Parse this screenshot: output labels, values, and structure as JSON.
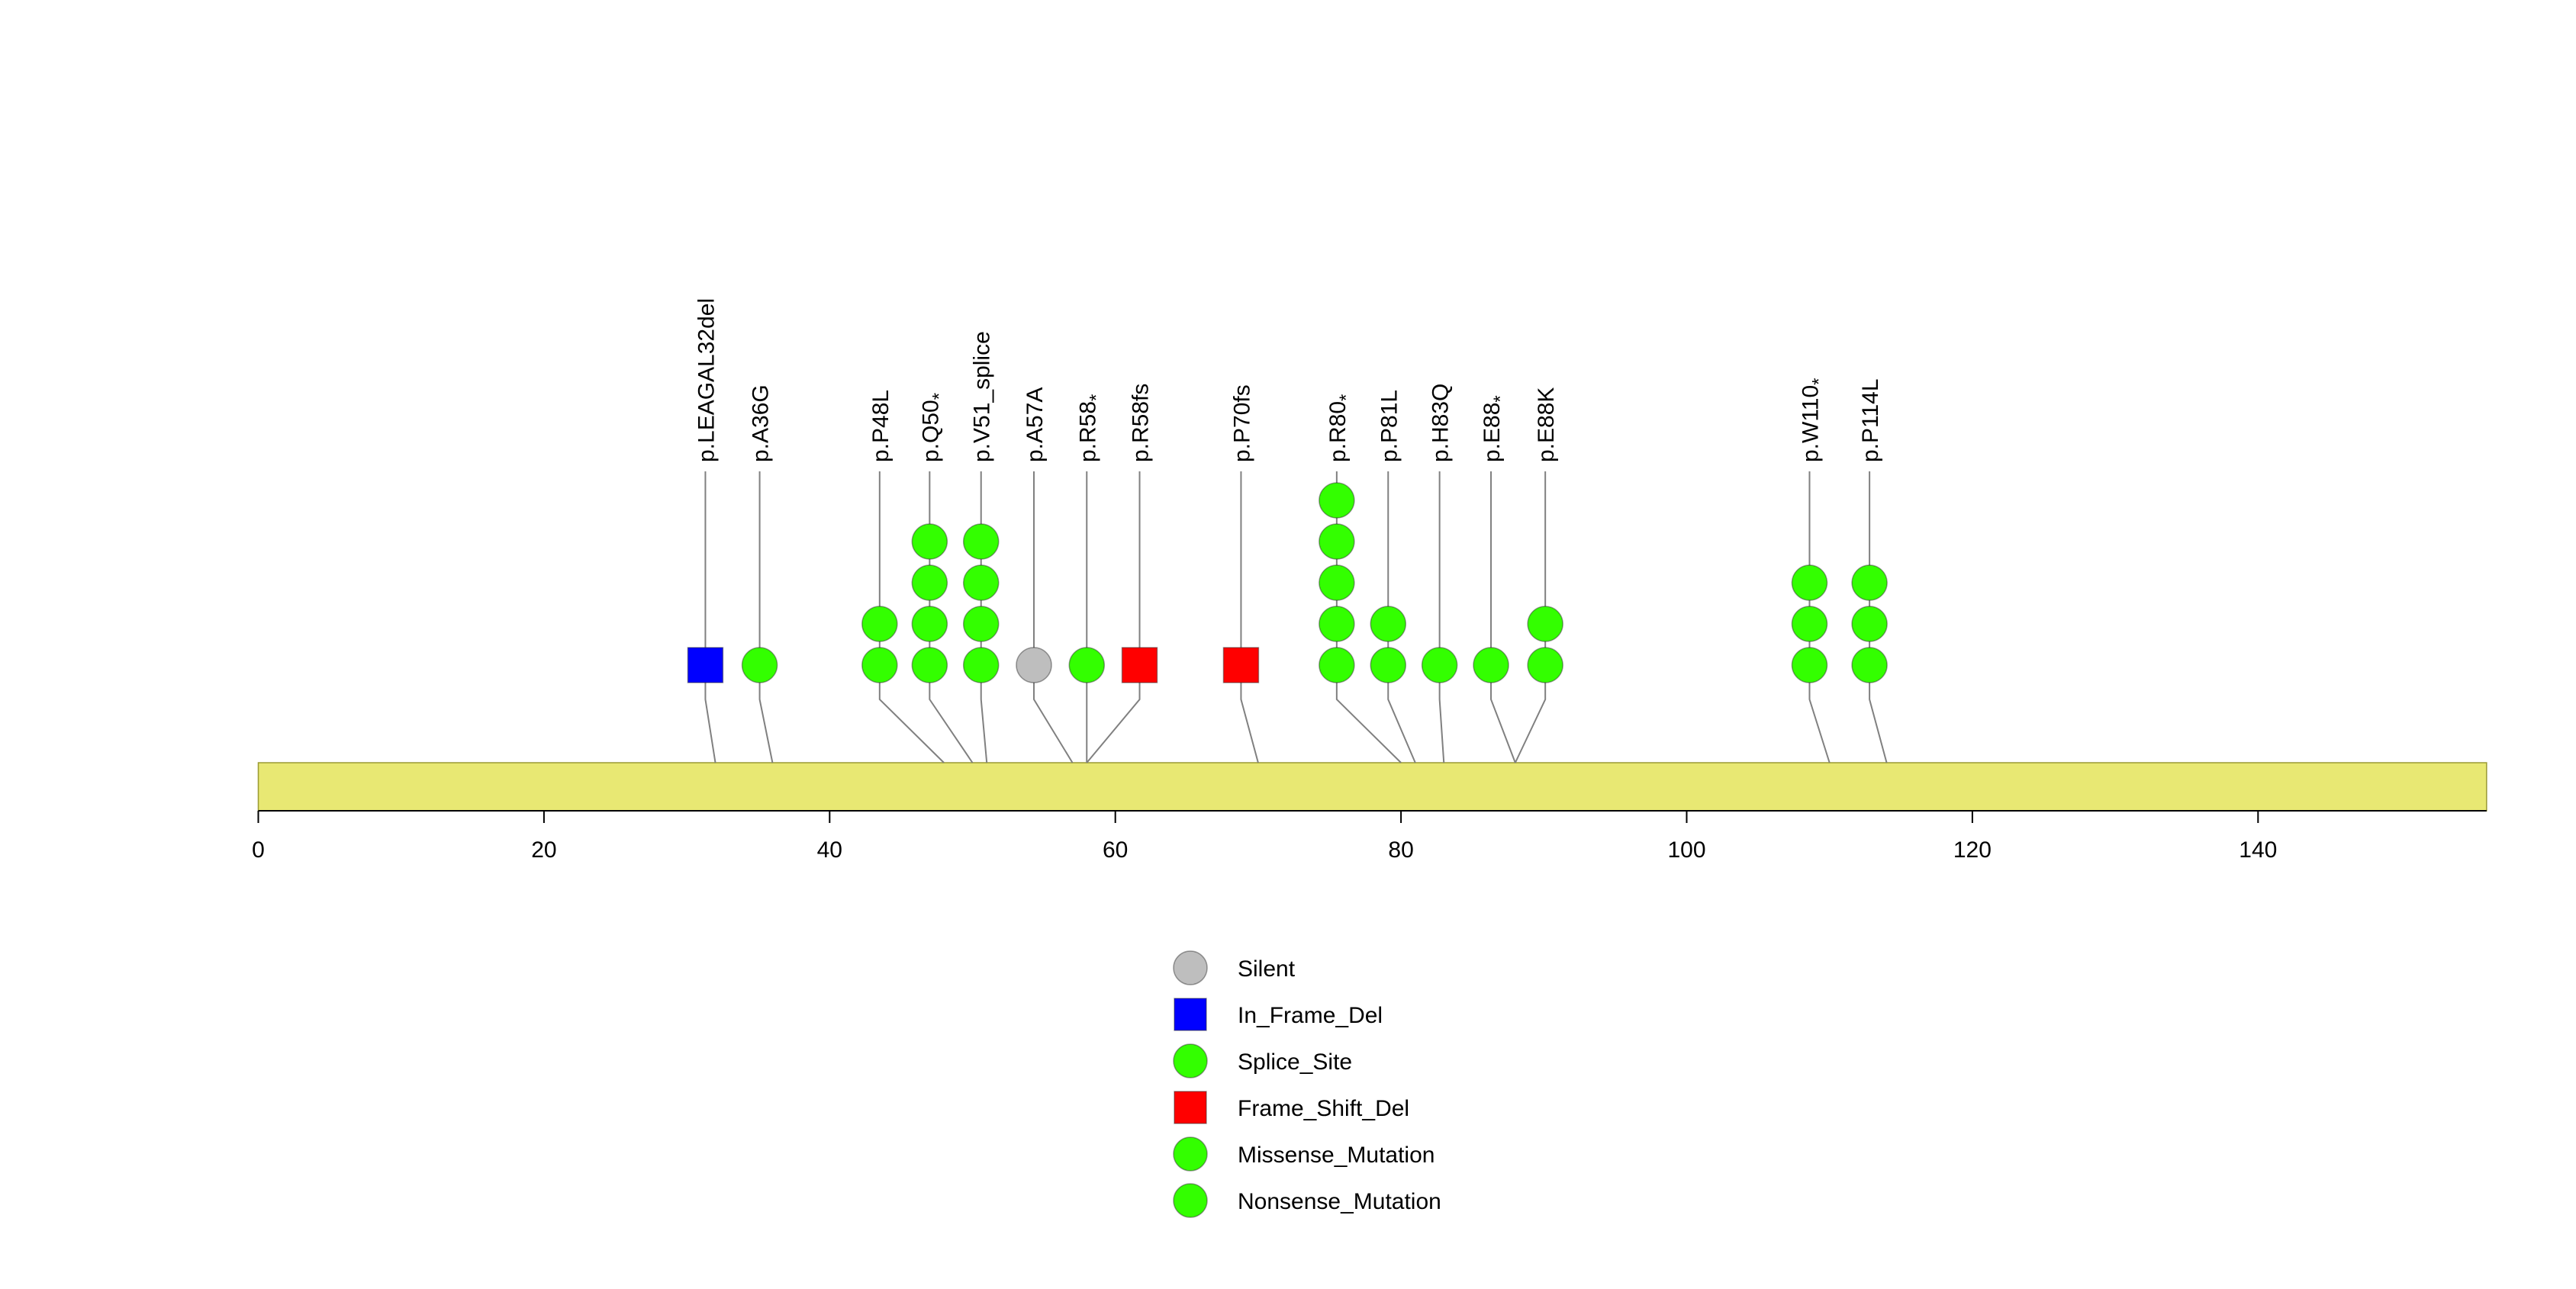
{
  "chart_data": {
    "type": "lollipop",
    "title": "",
    "protein_length": 156,
    "x_axis": {
      "min": 0,
      "max": 156,
      "ticks": [
        0,
        20,
        40,
        60,
        80,
        100,
        120,
        140
      ]
    },
    "gene_body_color": "#E8E873",
    "gene_body_border": "#9a9a33",
    "stick_color": "#808080",
    "axis_color": "#000000",
    "type_colors": {
      "Silent": "#BEBEBE",
      "In_Frame_Del": "#0000FF",
      "Splice_Site": "#33FF00",
      "Frame_Shift_Del": "#FF0000",
      "Missense_Mutation": "#33FF00",
      "Nonsense_Mutation": "#33FF00"
    },
    "type_shapes": {
      "Silent": "circle",
      "In_Frame_Del": "square",
      "Splice_Site": "circle",
      "Frame_Shift_Del": "square",
      "Missense_Mutation": "circle",
      "Nonsense_Mutation": "circle"
    },
    "mutations": [
      {
        "label": "p.LEAGAL32del",
        "position": 32,
        "display_position": 31.3,
        "count": 1,
        "type": "In_Frame_Del"
      },
      {
        "label": "p.A36G",
        "position": 36,
        "display_position": 35.1,
        "count": 1,
        "type": "Missense_Mutation"
      },
      {
        "label": "p.P48L",
        "position": 48,
        "display_position": 43.5,
        "count": 2,
        "type": "Missense_Mutation"
      },
      {
        "label": "p.Q50*",
        "position": 50,
        "display_position": 47.0,
        "count": 4,
        "type": "Nonsense_Mutation"
      },
      {
        "label": "p.V51_splice",
        "position": 51,
        "display_position": 50.6,
        "count": 4,
        "type": "Splice_Site"
      },
      {
        "label": "p.A57A",
        "position": 57,
        "display_position": 54.3,
        "count": 1,
        "type": "Silent"
      },
      {
        "label": "p.R58*",
        "position": 58,
        "display_position": 58.0,
        "count": 1,
        "type": "Nonsense_Mutation"
      },
      {
        "label": "p.R58fs",
        "position": 58,
        "display_position": 61.7,
        "count": 1,
        "type": "Frame_Shift_Del"
      },
      {
        "label": "p.P70fs",
        "position": 70,
        "display_position": 68.8,
        "count": 1,
        "type": "Frame_Shift_Del"
      },
      {
        "label": "p.R80*",
        "position": 80,
        "display_position": 75.5,
        "count": 5,
        "type": "Nonsense_Mutation"
      },
      {
        "label": "p.P81L",
        "position": 81,
        "display_position": 79.1,
        "count": 2,
        "type": "Missense_Mutation"
      },
      {
        "label": "p.H83Q",
        "position": 83,
        "display_position": 82.7,
        "count": 1,
        "type": "Missense_Mutation"
      },
      {
        "label": "p.E88*",
        "position": 88,
        "display_position": 86.3,
        "count": 1,
        "type": "Nonsense_Mutation"
      },
      {
        "label": "p.E88K",
        "position": 88,
        "display_position": 90.1,
        "count": 2,
        "type": "Missense_Mutation"
      },
      {
        "label": "p.W110*",
        "position": 110,
        "display_position": 108.6,
        "count": 3,
        "type": "Nonsense_Mutation"
      },
      {
        "label": "p.P114L",
        "position": 114,
        "display_position": 112.8,
        "count": 3,
        "type": "Missense_Mutation"
      }
    ],
    "legend": [
      {
        "label": "Silent",
        "type": "Silent"
      },
      {
        "label": "In_Frame_Del",
        "type": "In_Frame_Del"
      },
      {
        "label": "Splice_Site",
        "type": "Splice_Site"
      },
      {
        "label": "Frame_Shift_Del",
        "type": "Frame_Shift_Del"
      },
      {
        "label": "Missense_Mutation",
        "type": "Missense_Mutation"
      },
      {
        "label": "Nonsense_Mutation",
        "type": "Nonsense_Mutation"
      }
    ]
  }
}
